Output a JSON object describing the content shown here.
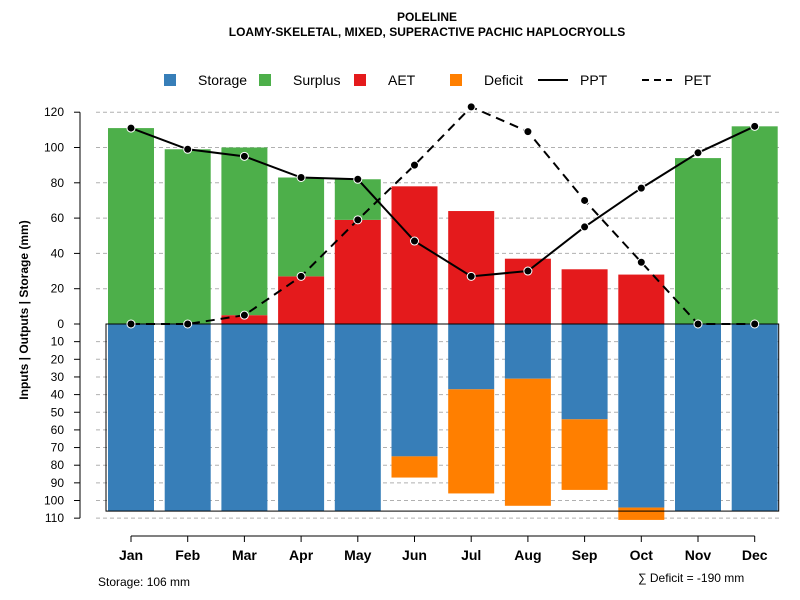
{
  "chart_data": {
    "type": "bar",
    "title": "POLELINE",
    "subtitle": "LOAMY-SKELETAL, MIXED, SUPERACTIVE PACHIC HAPLOCRYOLLS",
    "ylabel": "Inputs | Outputs | Storage    (mm)",
    "categories": [
      "Jan",
      "Feb",
      "Mar",
      "Apr",
      "May",
      "Jun",
      "Jul",
      "Aug",
      "Sep",
      "Oct",
      "Nov",
      "Dec"
    ],
    "ylim_upper": [
      0,
      130
    ],
    "ylim_lower": [
      0,
      110
    ],
    "yticks_upper": [
      "0",
      "20",
      "40",
      "60",
      "80",
      "100",
      "120"
    ],
    "yticks_lower": [
      "10",
      "20",
      "30",
      "40",
      "50",
      "60",
      "70",
      "80",
      "90",
      "100",
      "110"
    ],
    "series": [
      {
        "name": "Surplus",
        "color": "#4DAF4A",
        "values": [
          111,
          99,
          95,
          56,
          23,
          0,
          0,
          0,
          0,
          0,
          94,
          112
        ]
      },
      {
        "name": "AET",
        "color": "#E41A1C",
        "values": [
          0,
          0,
          5,
          27,
          59,
          78,
          64,
          37,
          31,
          28,
          0,
          0
        ]
      },
      {
        "name": "Storage",
        "color": "#377EB8",
        "values": [
          106,
          106,
          106,
          106,
          106,
          75,
          37,
          31,
          54,
          104,
          106,
          106
        ]
      },
      {
        "name": "Deficit",
        "color": "#FF7F00",
        "values": [
          0,
          0,
          0,
          0,
          0,
          12,
          59,
          72,
          40,
          7,
          0,
          0
        ]
      },
      {
        "name": "PPT",
        "color": "#000000",
        "style": "solid",
        "values": [
          111,
          99,
          95,
          83,
          82,
          47,
          27,
          30,
          55,
          77,
          97,
          112
        ]
      },
      {
        "name": "PET",
        "color": "#000000",
        "style": "dashed",
        "values": [
          0,
          0,
          5,
          27,
          59,
          90,
          123,
          109,
          70,
          35,
          0,
          0
        ]
      }
    ],
    "legend": {
      "position": "top",
      "items": [
        {
          "label": "Storage",
          "kind": "box",
          "color": "#377EB8"
        },
        {
          "label": "Surplus",
          "kind": "box",
          "color": "#4DAF4A"
        },
        {
          "label": "AET",
          "kind": "box",
          "color": "#E41A1C"
        },
        {
          "label": "Deficit",
          "kind": "box",
          "color": "#FF7F00"
        },
        {
          "label": "PPT",
          "kind": "line",
          "dash": "solid"
        },
        {
          "label": "PET",
          "kind": "line",
          "dash": "dashed"
        }
      ]
    },
    "storage_capacity": 106,
    "storage_note": "Storage: 106 mm",
    "deficit_note": "∑ Deficit = -190 mm",
    "grid": true
  }
}
